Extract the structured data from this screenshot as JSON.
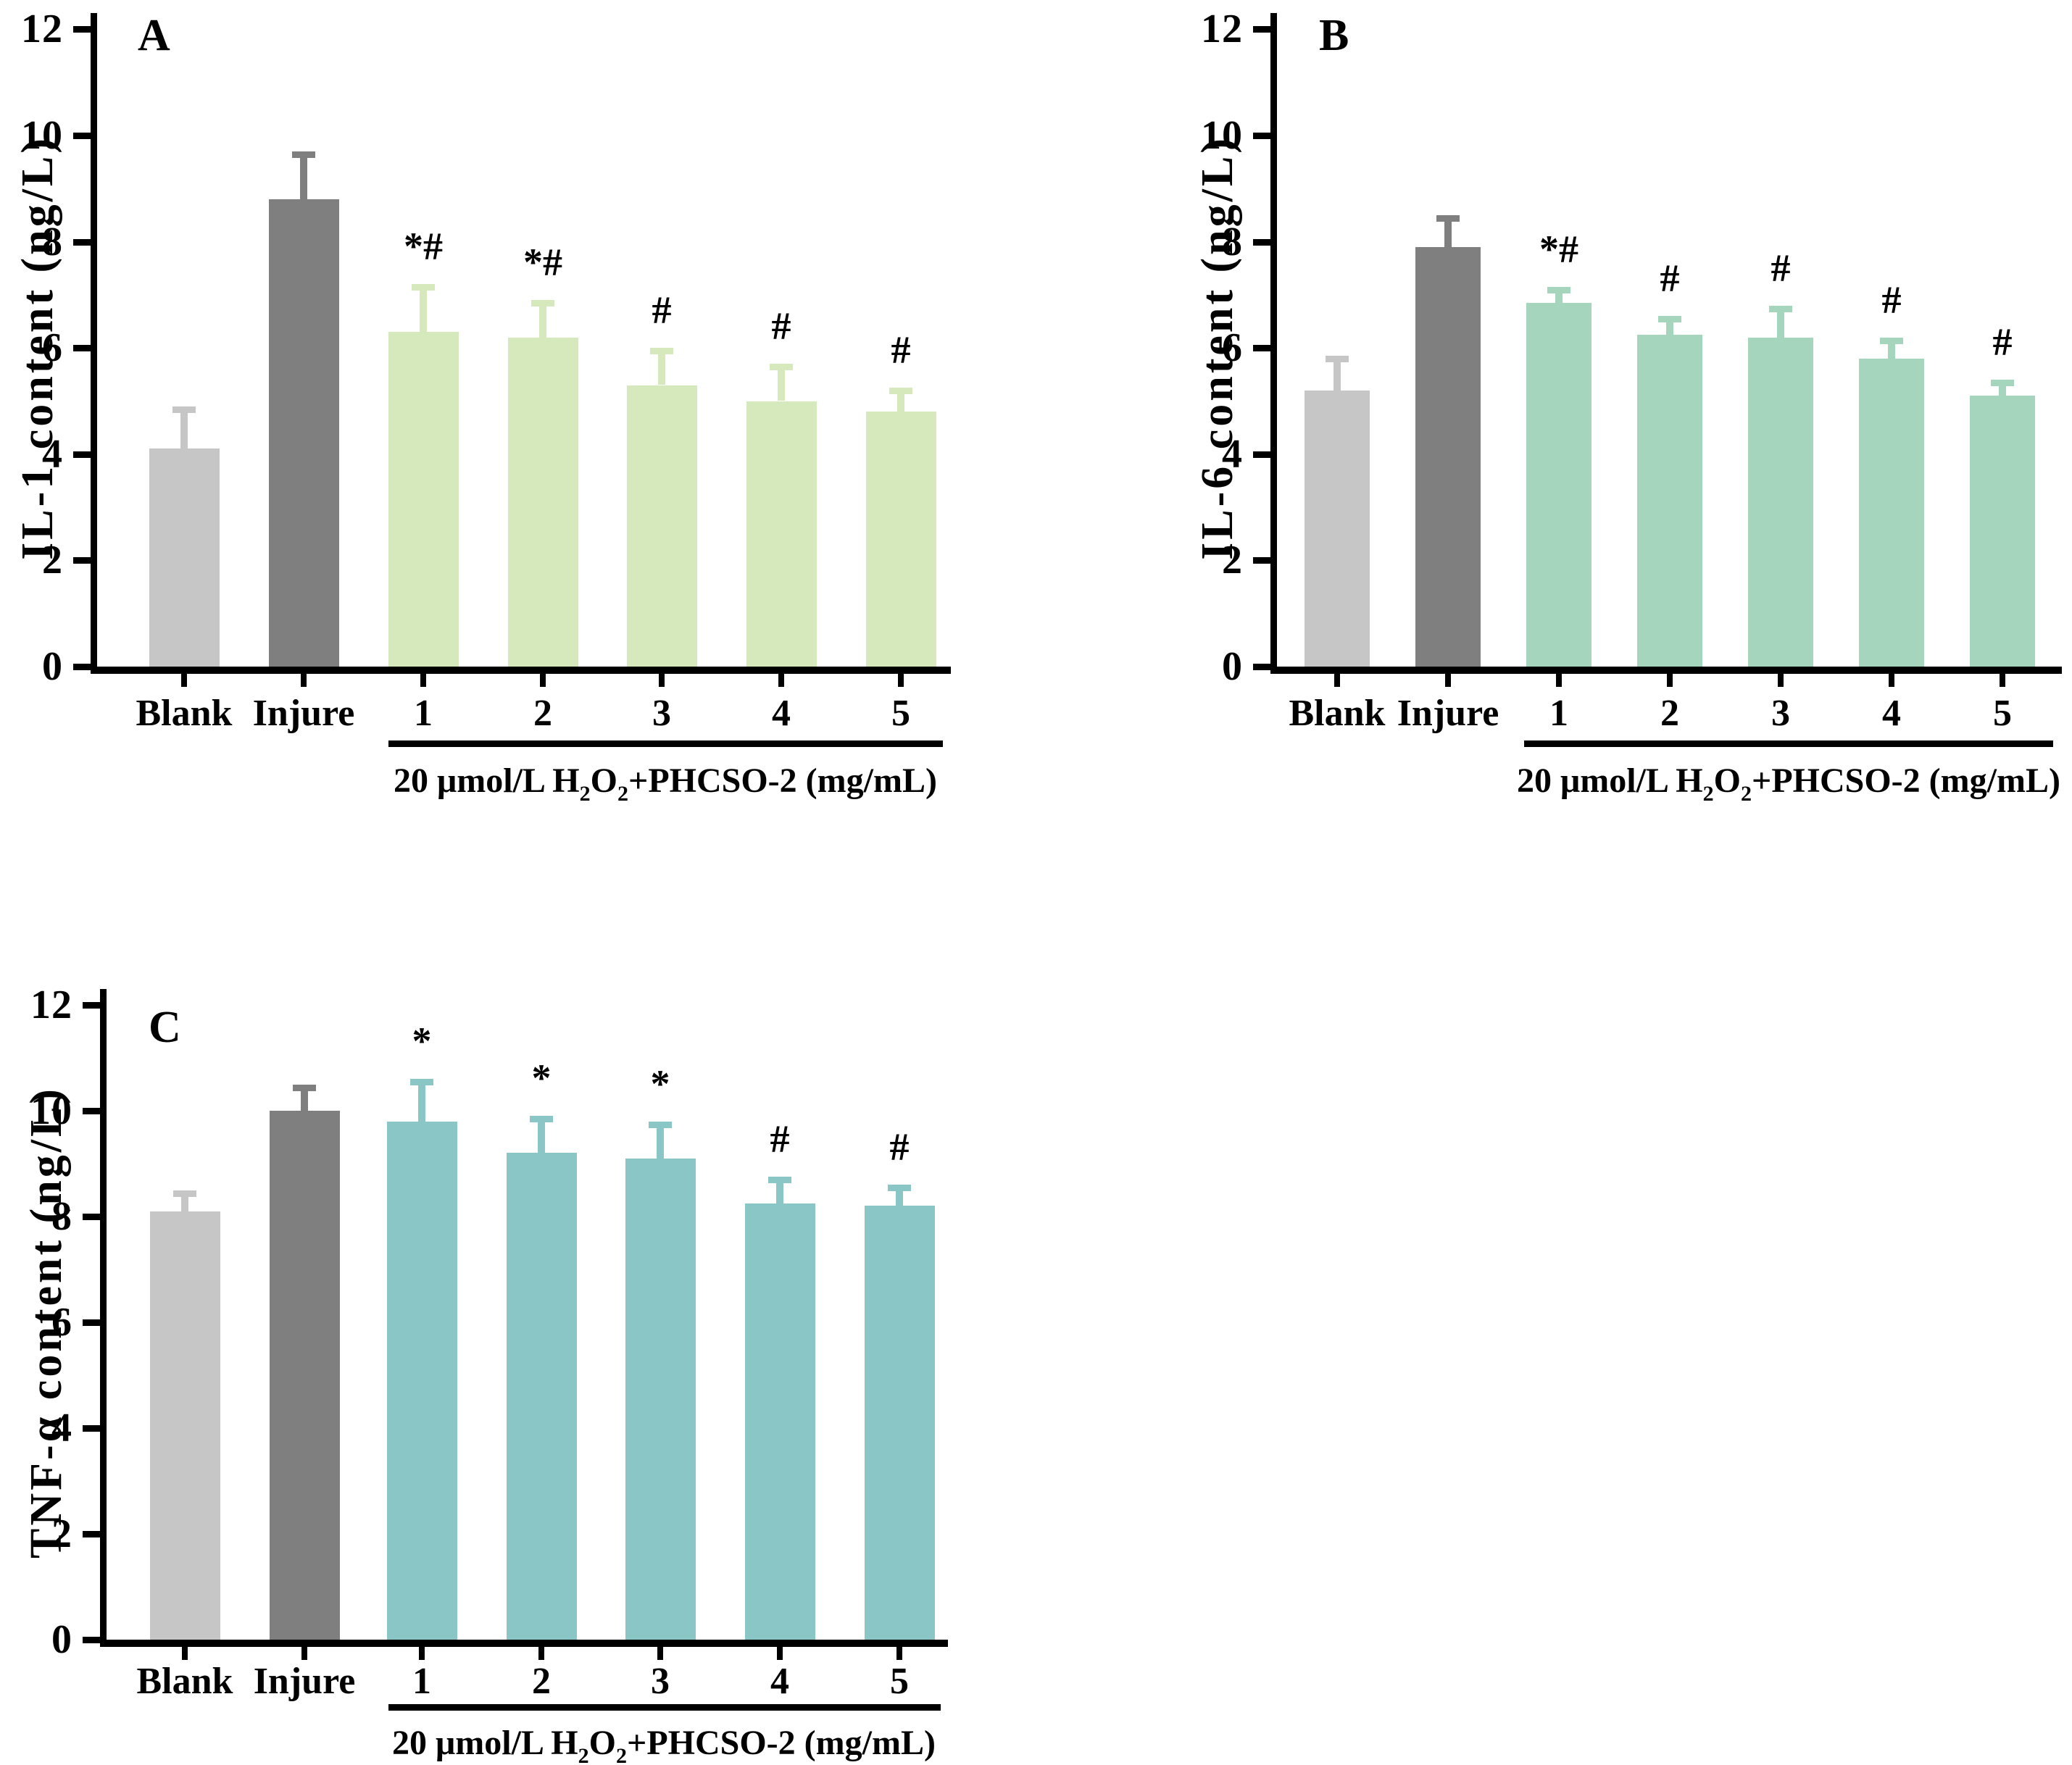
{
  "figure": {
    "background": "#ffffff",
    "group_label_parts": [
      "20 μmol/L H",
      "2",
      "O",
      "2",
      "+PHCSO-2 (mg/mL)"
    ],
    "axis_color": "#000000",
    "text_color": "#000000"
  },
  "chart_data": [
    {
      "type": "bar",
      "panel": "A",
      "ylabel": "IL-1 content (ng/L)",
      "xlabel": "",
      "x_group_label": "20 μmol/L H₂O₂+PHCSO-2 (mg/mL)",
      "x_group_span": [
        "1",
        "5"
      ],
      "categories": [
        "Blank",
        "Injure",
        "1",
        "2",
        "3",
        "4",
        "5"
      ],
      "values": [
        4.1,
        8.8,
        6.3,
        6.2,
        5.3,
        5.0,
        4.8
      ],
      "errors": [
        0.8,
        0.9,
        0.9,
        0.7,
        0.7,
        0.7,
        0.45
      ],
      "annotations": [
        "",
        "",
        "*#",
        "*#",
        "#",
        "#",
        "#"
      ],
      "y_ticks": [
        0,
        2,
        4,
        6,
        8,
        10,
        12
      ],
      "ylim": [
        0,
        12
      ],
      "grid": false,
      "legend": false,
      "bar_colors": {
        "blank": "#c6c6c6",
        "injure": "#7f7f7f",
        "treatment": "#d5e9bc"
      }
    },
    {
      "type": "bar",
      "panel": "B",
      "ylabel": "IL-6 content (ng/L)",
      "xlabel": "",
      "x_group_label": "20 μmol/L H₂O₂+PHCSO-2 (mg/mL)",
      "x_group_span": [
        "1",
        "5"
      ],
      "categories": [
        "Blank",
        "Injure",
        "1",
        "2",
        "3",
        "4",
        "5"
      ],
      "values": [
        5.2,
        7.9,
        6.85,
        6.25,
        6.2,
        5.8,
        5.1
      ],
      "errors": [
        0.65,
        0.6,
        0.3,
        0.35,
        0.6,
        0.4,
        0.3
      ],
      "annotations": [
        "",
        "",
        "*#",
        "#",
        "#",
        "#",
        "#"
      ],
      "y_ticks": [
        0,
        2,
        4,
        6,
        8,
        10,
        12
      ],
      "ylim": [
        0,
        12
      ],
      "grid": false,
      "legend": false,
      "bar_colors": {
        "blank": "#c6c6c6",
        "injure": "#7f7f7f",
        "treatment": "#a6d5be"
      }
    },
    {
      "type": "bar",
      "panel": "C",
      "ylabel": "TNF-α content (ng/L)",
      "xlabel": "",
      "x_group_label": "20 μmol/L H₂O₂+PHCSO-2 (mg/mL)",
      "x_group_span": [
        "1",
        "5"
      ],
      "categories": [
        "Blank",
        "Injure",
        "1",
        "2",
        "3",
        "4",
        "5"
      ],
      "values": [
        8.1,
        10.0,
        9.8,
        9.2,
        9.1,
        8.25,
        8.2
      ],
      "errors": [
        0.4,
        0.5,
        0.8,
        0.7,
        0.7,
        0.5,
        0.4
      ],
      "annotations": [
        "",
        "",
        "*",
        "*",
        "*",
        "#",
        "#"
      ],
      "y_ticks": [
        0,
        2,
        4,
        6,
        8,
        10,
        12
      ],
      "ylim": [
        0,
        12
      ],
      "grid": false,
      "legend": false,
      "bar_colors": {
        "blank": "#c6c6c6",
        "injure": "#7f7f7f",
        "treatment": "#8ac6c6"
      }
    }
  ]
}
